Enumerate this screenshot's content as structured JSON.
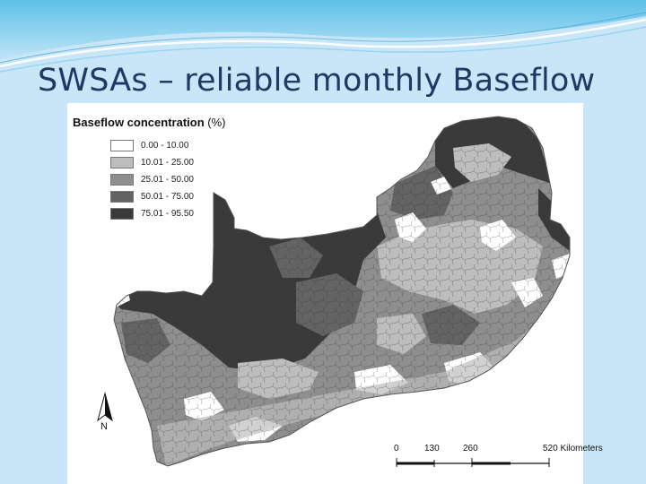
{
  "slide": {
    "title": "SWSAs – reliable monthly Baseflow"
  },
  "legend": {
    "title": "Baseflow concentration",
    "unit": "(%)",
    "classes": [
      {
        "label": "0.00 - 10.00",
        "color": "#ffffff"
      },
      {
        "label": "10.01 - 25.00",
        "color": "#bdbdbd"
      },
      {
        "label": "25.01 - 50.00",
        "color": "#8e8e8e"
      },
      {
        "label": "50.01 - 75.00",
        "color": "#636363"
      },
      {
        "label": "75.01 - 95.50",
        "color": "#3a3a3a"
      }
    ]
  },
  "north_arrow": {
    "label": "N"
  },
  "scale_bar": {
    "ticks": [
      "0",
      "130",
      "260"
    ],
    "end_label": "520 Kilometers"
  },
  "colors": {
    "slide_background": "#c9e6f8",
    "title_text": "#1f3864",
    "wave_accent": "#4fb3df",
    "map_border": "#555555"
  }
}
